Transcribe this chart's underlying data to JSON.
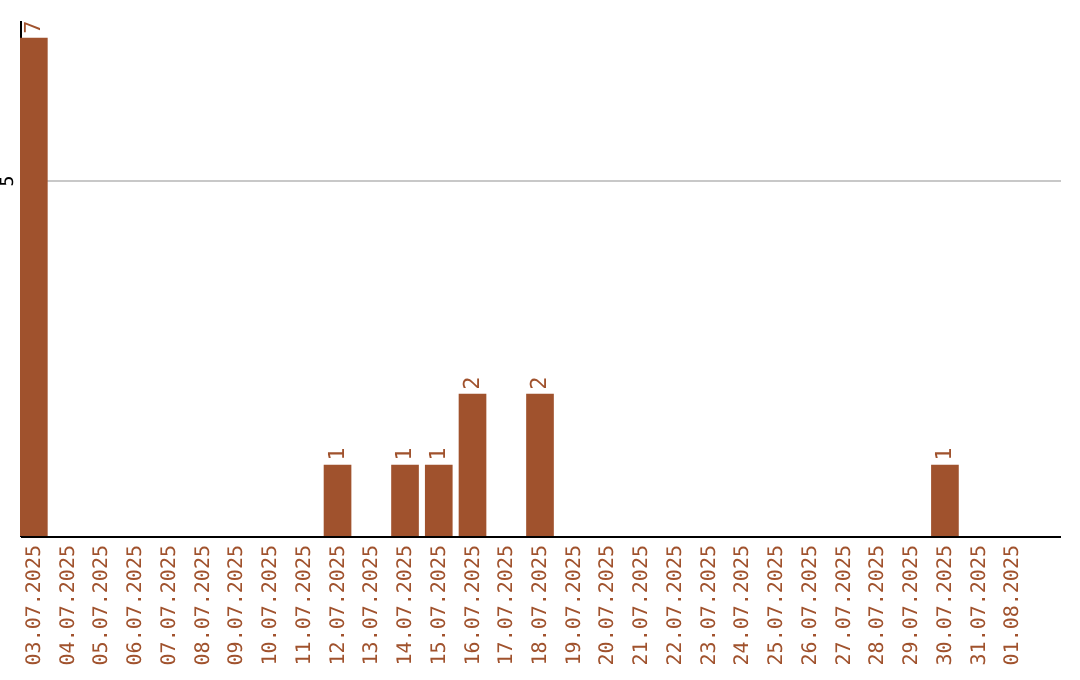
{
  "chart_data": {
    "type": "bar",
    "categories": [
      "03.07.2025",
      "04.07.2025",
      "05.07.2025",
      "06.07.2025",
      "07.07.2025",
      "08.07.2025",
      "09.07.2025",
      "10.07.2025",
      "11.07.2025",
      "12.07.2025",
      "13.07.2025",
      "14.07.2025",
      "15.07.2025",
      "16.07.2025",
      "17.07.2025",
      "18.07.2025",
      "19.07.2025",
      "20.07.2025",
      "21.07.2025",
      "22.07.2025",
      "23.07.2025",
      "24.07.2025",
      "25.07.2025",
      "26.07.2025",
      "27.07.2025",
      "28.07.2025",
      "29.07.2025",
      "30.07.2025",
      "31.07.2025",
      "01.08.2025"
    ],
    "values": [
      7,
      0,
      0,
      0,
      0,
      0,
      0,
      0,
      0,
      1,
      0,
      1,
      1,
      2,
      0,
      2,
      0,
      0,
      0,
      0,
      0,
      0,
      0,
      0,
      0,
      0,
      0,
      1,
      0,
      0
    ],
    "value_labels": [
      "7",
      null,
      null,
      null,
      null,
      null,
      null,
      null,
      null,
      "1",
      null,
      "1",
      "1",
      "2",
      null,
      "2",
      null,
      null,
      null,
      null,
      null,
      null,
      null,
      null,
      null,
      null,
      null,
      "1",
      null,
      null
    ],
    "color": "#a0522d",
    "ylim": [
      0,
      7.25
    ],
    "yticks": [
      5
    ],
    "grid": "y"
  }
}
